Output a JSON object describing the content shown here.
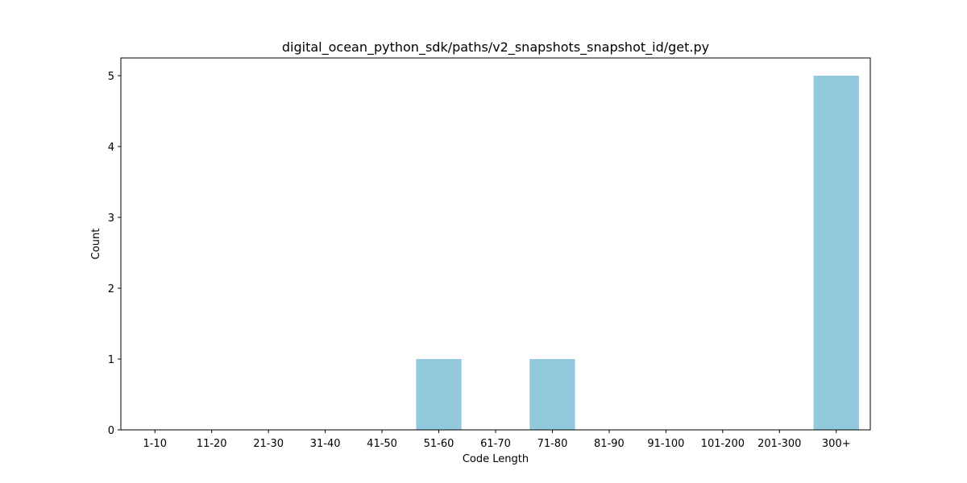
{
  "chart_data": {
    "type": "bar",
    "title": "digital_ocean_python_sdk/paths/v2_snapshots_snapshot_id/get.py",
    "xlabel": "Code Length",
    "ylabel": "Count",
    "categories": [
      "1-10",
      "11-20",
      "21-30",
      "31-40",
      "41-50",
      "51-60",
      "61-70",
      "71-80",
      "81-90",
      "91-100",
      "101-200",
      "201-300",
      "300+"
    ],
    "values": [
      0,
      0,
      0,
      0,
      0,
      1,
      0,
      1,
      0,
      0,
      0,
      0,
      5
    ],
    "yticks": [
      "0",
      "1",
      "2",
      "3",
      "4",
      "5"
    ],
    "ylim": [
      0,
      5.25
    ],
    "bar_color": "#92c9dd",
    "grid": false,
    "legend": "none"
  }
}
